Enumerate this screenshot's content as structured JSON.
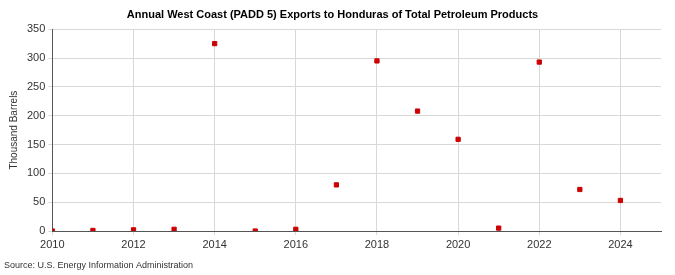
{
  "chart_data": {
    "type": "scatter",
    "title": "Annual West Coast (PADD 5) Exports to Honduras of Total Petroleum Products",
    "y_label": "Thousand Barrels",
    "source": "Source: U.S. Energy Information Administration",
    "x": [
      2010,
      2011,
      2012,
      2013,
      2014,
      2015,
      2016,
      2017,
      2018,
      2019,
      2020,
      2021,
      2022,
      2023,
      2024
    ],
    "values": [
      0,
      1,
      2,
      3,
      325,
      0,
      3,
      80,
      295,
      208,
      159,
      5,
      293,
      72,
      53
    ],
    "color": "#cc0000",
    "marker": "square",
    "xlim": [
      2010,
      2025
    ],
    "xticks": [
      2010,
      2012,
      2014,
      2016,
      2018,
      2020,
      2022,
      2024
    ],
    "ylim": [
      0,
      350
    ],
    "yticks": [
      0,
      50,
      100,
      150,
      200,
      250,
      300,
      350
    ],
    "grid": true
  }
}
